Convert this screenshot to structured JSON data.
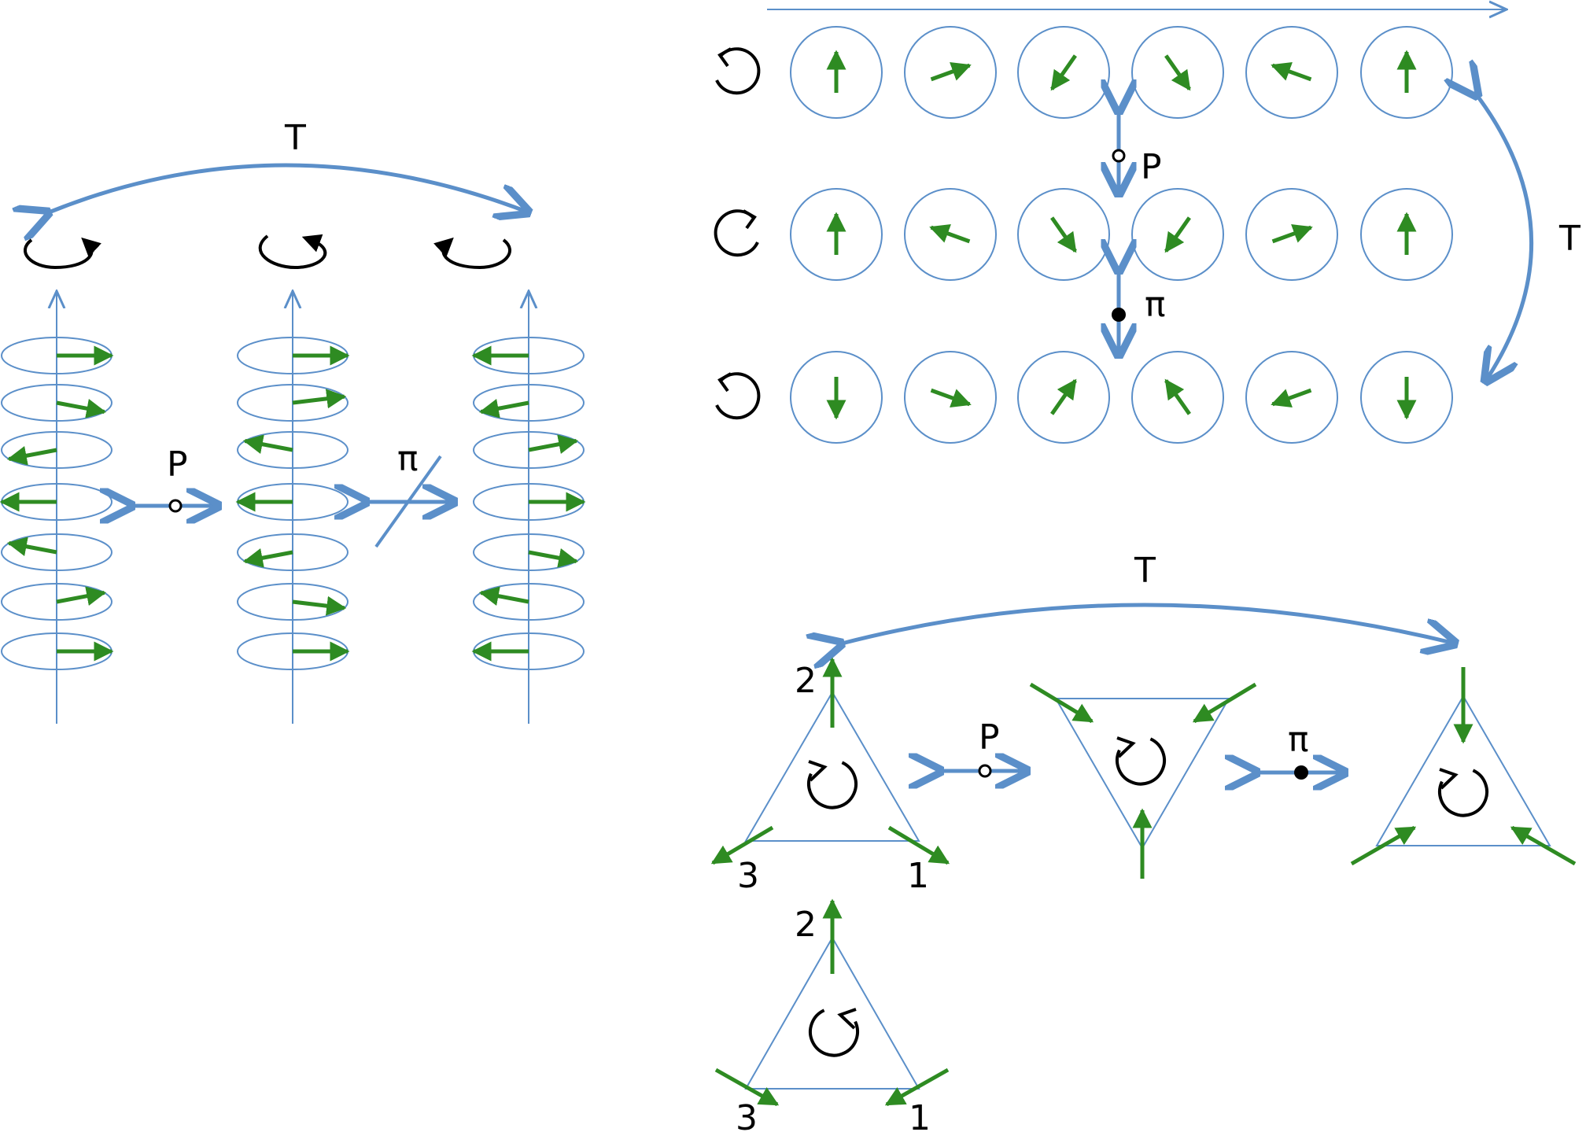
{
  "colors": {
    "blue": "#5B8FC9",
    "green": "#2E8B22",
    "black": "#000000",
    "white": "#ffffff"
  },
  "labels": {
    "T": "T",
    "P": "P",
    "pi": "π",
    "vertex_1": "1",
    "vertex_2": "2",
    "vertex_3": "3"
  },
  "icons": {
    "rotation_ccw": "counterclockwise-rotation-icon",
    "rotation_cw": "clockwise-rotation-icon",
    "spiral": "spiral-rotation-icon",
    "p_symmetry": "open-circle-icon",
    "pi_symmetry": "filled-circle-icon"
  },
  "spin_chain": {
    "rows": [
      {
        "rotation": "counterclockwise",
        "spin_angles_deg": [
          0,
          70,
          215,
          145,
          290,
          0
        ]
      },
      {
        "rotation": "clockwise",
        "spin_angles_deg": [
          0,
          290,
          145,
          215,
          70,
          0
        ]
      },
      {
        "rotation": "counterclockwise",
        "spin_angles_deg": [
          180,
          110,
          35,
          325,
          250,
          180
        ]
      }
    ]
  },
  "helices": [
    {
      "rotation": "counterclockwise",
      "spin_angles_deg": [
        90,
        120,
        240,
        270,
        300,
        60,
        90
      ]
    },
    {
      "rotation": "spiral",
      "spin_angles_deg": [
        90,
        70,
        300,
        270,
        240,
        110,
        90
      ]
    },
    {
      "rotation": "clockwise",
      "spin_angles_deg": [
        270,
        240,
        60,
        90,
        120,
        300,
        270
      ]
    }
  ],
  "triangles": [
    {
      "orientation": "up",
      "rotation": "counterclockwise",
      "vertex_labels": [
        "1",
        "2",
        "3"
      ],
      "spins": "out"
    },
    {
      "orientation": "down",
      "rotation": "counterclockwise",
      "vertex_labels": [],
      "spins": "in"
    },
    {
      "orientation": "up",
      "rotation": "counterclockwise",
      "vertex_labels": [],
      "spins": "in"
    },
    {
      "orientation": "up",
      "rotation": "clockwise",
      "vertex_labels": [
        "1",
        "2",
        "3"
      ],
      "spins": "mixed"
    }
  ]
}
